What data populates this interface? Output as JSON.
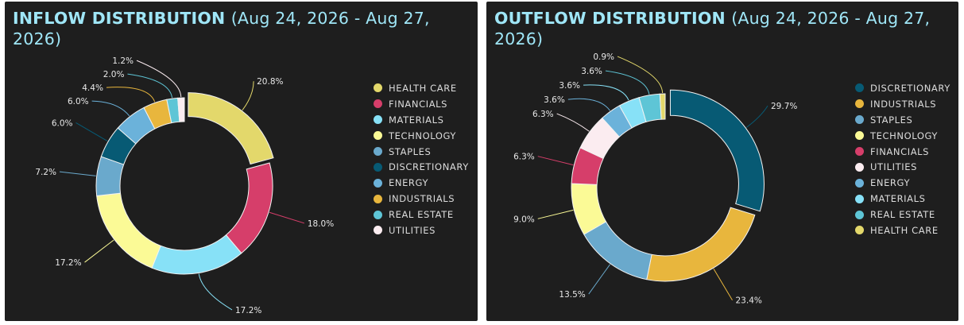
{
  "chart_data": [
    {
      "type": "pie",
      "title": "INFLOW DISTRIBUTION",
      "subtitle": "(Aug 24, 2026 - Aug 27, 2026)",
      "legend_position": "right",
      "slices": [
        {
          "name": "HEALTH CARE",
          "value": 20.8,
          "label": "20.8%",
          "color": "#e3d86b"
        },
        {
          "name": "FINANCIALS",
          "value": 18.0,
          "label": "18.0%",
          "color": "#d63e6a"
        },
        {
          "name": "MATERIALS",
          "value": 17.2,
          "label": "17.2%",
          "color": "#87e1f7"
        },
        {
          "name": "TECHNOLOGY",
          "value": 17.2,
          "label": "17.2%",
          "color": "#fbfa96"
        },
        {
          "name": "STAPLES",
          "value": 7.2,
          "label": "7.2%",
          "color": "#6aa9cc"
        },
        {
          "name": "DISCRETIONARY",
          "value": 6.0,
          "label": "6.0%",
          "color": "#075a74"
        },
        {
          "name": "ENERGY",
          "value": 6.0,
          "label": "6.0%",
          "color": "#6bb2da"
        },
        {
          "name": "INDUSTRIALS",
          "value": 4.4,
          "label": "4.4%",
          "color": "#e8b63d"
        },
        {
          "name": "REAL ESTATE",
          "value": 2.0,
          "label": "2.0%",
          "color": "#5ec5d6"
        },
        {
          "name": "UTILITIES",
          "value": 1.2,
          "label": "1.2%",
          "color": "#fbecf0"
        }
      ]
    },
    {
      "type": "pie",
      "title": "OUTFLOW DISTRIBUTION",
      "subtitle": "(Aug 24, 2026 - Aug 27, 2026)",
      "legend_position": "right",
      "slices": [
        {
          "name": "DISCRETIONARY",
          "value": 29.7,
          "label": "29.7%",
          "color": "#075a74"
        },
        {
          "name": "INDUSTRIALS",
          "value": 23.4,
          "label": "23.4%",
          "color": "#e8b63d"
        },
        {
          "name": "STAPLES",
          "value": 13.5,
          "label": "13.5%",
          "color": "#6aa9cc"
        },
        {
          "name": "TECHNOLOGY",
          "value": 9.0,
          "label": "9.0%",
          "color": "#fbfa96"
        },
        {
          "name": "FINANCIALS",
          "value": 6.3,
          "label": "6.3%",
          "color": "#d63e6a"
        },
        {
          "name": "UTILITIES",
          "value": 6.3,
          "label": "6.3%",
          "color": "#fbecf0"
        },
        {
          "name": "ENERGY",
          "value": 3.6,
          "label": "3.6%",
          "color": "#6bb2da"
        },
        {
          "name": "MATERIALS",
          "value": 3.6,
          "label": "3.6%",
          "color": "#87e1f7"
        },
        {
          "name": "REAL ESTATE",
          "value": 3.6,
          "label": "3.6%",
          "color": "#5ec5d6"
        },
        {
          "name": "HEALTH CARE",
          "value": 0.9,
          "label": "0.9%",
          "color": "#e3d86b"
        }
      ]
    }
  ]
}
